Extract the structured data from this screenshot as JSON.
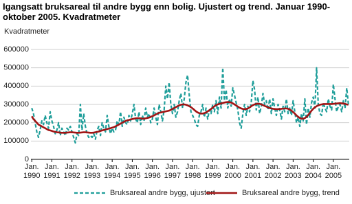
{
  "chart_data": {
    "type": "line",
    "title": "Igangsatt bruksareal til andre bygg enn bolig. Ujustert og trend. Januar 1990-oktober 2005. Kvadratmeter",
    "y_label": "Kvadratmeter",
    "ylim": [
      0,
      600000
    ],
    "yticks": [
      0,
      100000,
      200000,
      300000,
      400000,
      500000,
      600000
    ],
    "grid": true,
    "categories": [
      "Jan. 1990",
      null,
      null,
      null,
      null,
      null,
      null,
      null,
      null,
      null,
      null,
      null,
      "Jan. 1991",
      null,
      null,
      null,
      null,
      null,
      null,
      null,
      null,
      null,
      null,
      null,
      "Jan. 1992",
      null,
      null,
      null,
      null,
      null,
      null,
      null,
      null,
      null,
      null,
      null,
      "Jan. 1993",
      null,
      null,
      null,
      null,
      null,
      null,
      null,
      null,
      null,
      null,
      null,
      "Jan. 1994",
      null,
      null,
      null,
      null,
      null,
      null,
      null,
      null,
      null,
      null,
      null,
      "Jan. 1995",
      null,
      null,
      null,
      null,
      null,
      null,
      null,
      null,
      null,
      null,
      null,
      "Jan. 1996",
      null,
      null,
      null,
      null,
      null,
      null,
      null,
      null,
      null,
      null,
      null,
      "Jan. 1997",
      null,
      null,
      null,
      null,
      null,
      null,
      null,
      null,
      null,
      null,
      null,
      "Jan. 1998",
      null,
      null,
      null,
      null,
      null,
      null,
      null,
      null,
      null,
      null,
      null,
      "Jan. 1999",
      null,
      null,
      null,
      null,
      null,
      null,
      null,
      null,
      null,
      null,
      null,
      "Jan. 2000",
      null,
      null,
      null,
      null,
      null,
      null,
      null,
      null,
      null,
      null,
      null,
      "Jan. 2001",
      null,
      null,
      null,
      null,
      null,
      null,
      null,
      null,
      null,
      null,
      null,
      "Jan. 2002",
      null,
      null,
      null,
      null,
      null,
      null,
      null,
      null,
      null,
      null,
      null,
      "Jan. 2003",
      null,
      null,
      null,
      null,
      null,
      null,
      null,
      null,
      null,
      null,
      null,
      "Jan. 2004",
      null,
      null,
      null,
      null,
      null,
      null,
      null,
      null,
      null,
      null,
      null,
      "Jan. 2005",
      null,
      null,
      null,
      null,
      null,
      null,
      null,
      null,
      null
    ],
    "series": [
      {
        "name": "Bruksareal andre bygg, ujustert",
        "color": "#1f9e9a",
        "dashed": true,
        "values": [
          280000,
          250000,
          200000,
          150000,
          120000,
          160000,
          210000,
          190000,
          240000,
          200000,
          170000,
          260000,
          210000,
          180000,
          140000,
          160000,
          200000,
          130000,
          170000,
          150000,
          130000,
          170000,
          160000,
          180000,
          150000,
          120000,
          90000,
          140000,
          130000,
          300000,
          160000,
          250000,
          180000,
          140000,
          120000,
          130000,
          120000,
          140000,
          110000,
          160000,
          180000,
          130000,
          200000,
          170000,
          150000,
          240000,
          180000,
          140000,
          170000,
          150000,
          160000,
          210000,
          190000,
          260000,
          180000,
          230000,
          200000,
          190000,
          240000,
          210000,
          250000,
          300000,
          220000,
          200000,
          260000,
          190000,
          240000,
          210000,
          280000,
          230000,
          250000,
          200000,
          220000,
          280000,
          230000,
          190000,
          300000,
          260000,
          210000,
          270000,
          400000,
          330000,
          420000,
          300000,
          250000,
          300000,
          230000,
          260000,
          320000,
          360000,
          280000,
          330000,
          420000,
          460000,
          350000,
          260000,
          240000,
          220000,
          190000,
          180000,
          240000,
          260000,
          300000,
          230000,
          280000,
          220000,
          270000,
          250000,
          300000,
          260000,
          320000,
          250000,
          340000,
          280000,
          500000,
          320000,
          380000,
          280000,
          330000,
          290000,
          390000,
          350000,
          310000,
          270000,
          200000,
          170000,
          250000,
          300000,
          240000,
          290000,
          260000,
          310000,
          430000,
          380000,
          270000,
          340000,
          250000,
          290000,
          360000,
          300000,
          320000,
          270000,
          330000,
          250000,
          330000,
          280000,
          240000,
          300000,
          270000,
          220000,
          290000,
          260000,
          330000,
          250000,
          280000,
          240000,
          320000,
          260000,
          200000,
          230000,
          180000,
          250000,
          210000,
          330000,
          190000,
          280000,
          230000,
          310000,
          340000,
          280000,
          500000,
          300000,
          250000,
          240000,
          310000,
          280000,
          260000,
          330000,
          290000,
          270000,
          410000,
          330000,
          260000,
          290000,
          300000,
          260000,
          320000,
          280000,
          390000,
          300000
        ]
      },
      {
        "name": "Bruksareal andre bygg, trend",
        "color": "#a01414",
        "dashed": false,
        "values": [
          235000,
          220000,
          210000,
          200000,
          190000,
          185000,
          180000,
          175000,
          170000,
          165000,
          160000,
          158000,
          155000,
          152000,
          150000,
          148000,
          147000,
          146000,
          145000,
          145000,
          145000,
          146000,
          147000,
          148000,
          148000,
          147000,
          146000,
          145000,
          145000,
          146000,
          147000,
          148000,
          148000,
          147000,
          146000,
          145000,
          145000,
          146000,
          148000,
          150000,
          152000,
          155000,
          158000,
          160000,
          163000,
          165000,
          168000,
          170000,
          173000,
          176000,
          180000,
          185000,
          190000,
          195000,
          200000,
          205000,
          210000,
          213000,
          215000,
          218000,
          220000,
          222000,
          224000,
          225000,
          225000,
          224000,
          222000,
          222000,
          224000,
          226000,
          228000,
          232000,
          236000,
          240000,
          245000,
          250000,
          254000,
          256000,
          258000,
          260000,
          262000,
          264000,
          266000,
          270000,
          275000,
          280000,
          285000,
          290000,
          295000,
          298000,
          300000,
          300000,
          298000,
          295000,
          290000,
          285000,
          278000,
          270000,
          262000,
          256000,
          252000,
          250000,
          250000,
          252000,
          256000,
          262000,
          268000,
          275000,
          282000,
          290000,
          296000,
          300000,
          303000,
          305000,
          308000,
          310000,
          312000,
          313000,
          312000,
          310000,
          306000,
          300000,
          294000,
          288000,
          282000,
          278000,
          275000,
          274000,
          275000,
          278000,
          283000,
          290000,
          296000,
          300000,
          303000,
          304000,
          303000,
          300000,
          296000,
          292000,
          288000,
          284000,
          280000,
          278000,
          276000,
          275000,
          274000,
          274000,
          275000,
          276000,
          277000,
          278000,
          278000,
          276000,
          272000,
          266000,
          258000,
          250000,
          240000,
          232000,
          226000,
          222000,
          222000,
          225000,
          232000,
          242000,
          254000,
          266000,
          276000,
          284000,
          290000,
          295000,
          298000,
          300000,
          302000,
          302000,
          302000,
          302000,
          302000,
          302000,
          303000,
          304000,
          305000,
          306000,
          307000,
          306000,
          305000,
          303000,
          300000,
          298000
        ]
      }
    ]
  }
}
